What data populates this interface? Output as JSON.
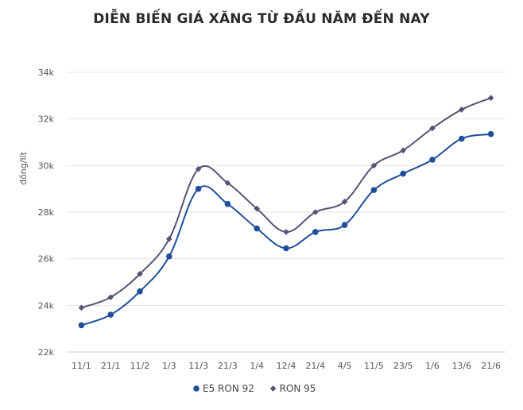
{
  "chart_data": {
    "type": "line",
    "title": "DIỄN BIẾN GIÁ XĂNG TỪ ĐẦU NĂM ĐẾN NAY",
    "ylabel": "đồng/lít",
    "xlabel": "",
    "categories": [
      "11/1",
      "21/1",
      "11/2",
      "1/3",
      "11/3",
      "21/3",
      "1/4",
      "12/4",
      "21/4",
      "4/5",
      "11/5",
      "23/5",
      "1/6",
      "13/6",
      "21/6"
    ],
    "ylim": [
      22000,
      34000
    ],
    "yticks": [
      22000,
      24000,
      26000,
      28000,
      30000,
      32000,
      34000
    ],
    "ytick_labels": [
      "22k",
      "24k",
      "26k",
      "28k",
      "30k",
      "32k",
      "34k"
    ],
    "grid": true,
    "legend_position": "bottom",
    "series": [
      {
        "name": "E5 RON 92",
        "color": "#1f4e9c",
        "marker": "circle",
        "values": [
          23150,
          23600,
          24600,
          26100,
          29000,
          28350,
          27300,
          26450,
          27150,
          27450,
          28950,
          29650,
          30250,
          31150,
          31350
        ]
      },
      {
        "name": "RON 95",
        "color": "#5a5275",
        "marker": "diamond",
        "values": [
          23900,
          24350,
          25350,
          26850,
          29850,
          29250,
          28150,
          27150,
          28000,
          28450,
          30000,
          30650,
          31600,
          32400,
          32900
        ]
      }
    ]
  }
}
